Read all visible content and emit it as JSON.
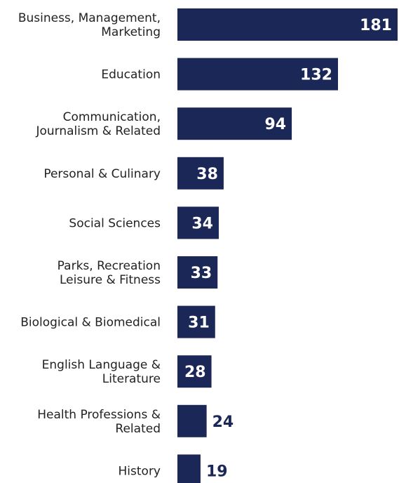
{
  "chart_data": {
    "type": "bar",
    "orientation": "horizontal",
    "categories": [
      "Business, Management,\nMarketing",
      "Education",
      "Communication,\nJournalism & Related",
      "Personal & Culinary",
      "Social Sciences",
      "Parks, Recreation\nLeisure & Fitness",
      "Biological & Biomedical",
      "English Language &\nLiterature",
      "Health Professions &\nRelated",
      "History"
    ],
    "values": [
      181,
      132,
      94,
      38,
      34,
      33,
      31,
      28,
      24,
      19
    ],
    "color": "#1b2857",
    "label_color": "#ffffff"
  }
}
